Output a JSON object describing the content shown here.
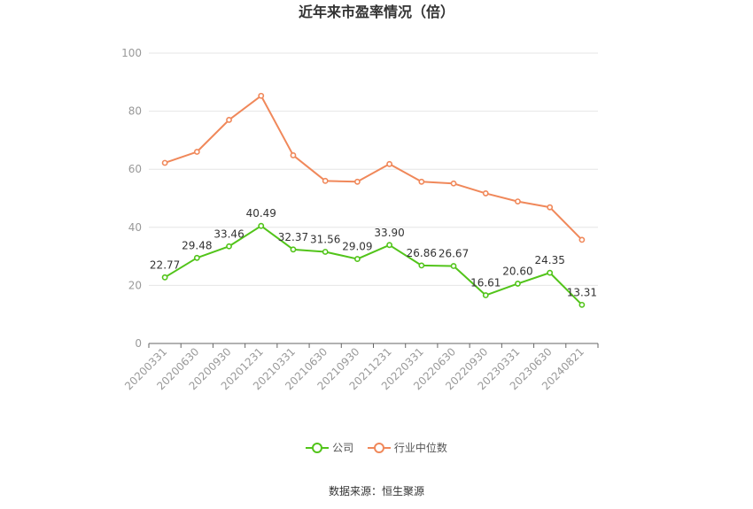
{
  "chart_data": {
    "type": "line",
    "title": "近年来市盈率情况（倍）",
    "categories": [
      "20200331",
      "20200630",
      "20200930",
      "20201231",
      "20210331",
      "20210630",
      "20210930",
      "20211231",
      "20220331",
      "20220630",
      "20220930",
      "20230331",
      "20230630",
      "20240821"
    ],
    "ylim": [
      0,
      100
    ],
    "yticks": [
      0,
      20,
      40,
      60,
      80,
      100
    ],
    "grid": true,
    "legend_position": "bottom",
    "series": [
      {
        "name": "公司",
        "color": "#52c41a",
        "values": [
          22.77,
          29.48,
          33.46,
          40.49,
          32.37,
          31.56,
          29.09,
          33.9,
          26.86,
          26.67,
          16.61,
          20.6,
          24.35,
          13.31
        ],
        "labels": [
          "22.77",
          "29.48",
          "33.46",
          "40.49",
          "32.37",
          "31.56",
          "29.09",
          "33.90",
          "26.86",
          "26.67",
          "16.61",
          "20.60",
          "24.35",
          "13.31"
        ]
      },
      {
        "name": "行业中位数",
        "color": "#f0885a",
        "values": [
          62.2,
          66.0,
          77.0,
          85.3,
          64.8,
          56.0,
          55.7,
          61.8,
          55.7,
          55.1,
          51.7,
          48.9,
          46.9,
          35.7
        ]
      }
    ]
  },
  "source": "数据来源：恒生聚源"
}
